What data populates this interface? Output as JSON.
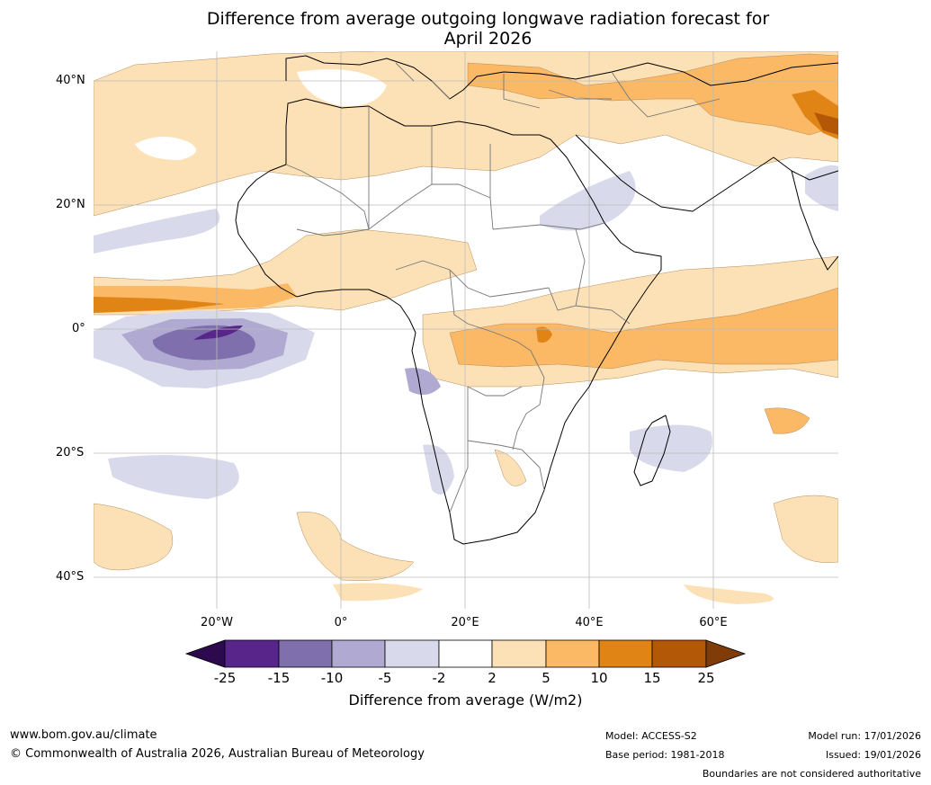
{
  "title": {
    "line1": "Difference from average outgoing longwave radiation forecast for",
    "line2": "April 2026"
  },
  "lat_labels": [
    "40°N",
    "20°N",
    "0°",
    "20°S",
    "40°S"
  ],
  "lon_labels": [
    "20°W",
    "0°",
    "20°E",
    "40°E",
    "60°E"
  ],
  "colorbar": {
    "ticks": [
      "-25",
      "-15",
      "-10",
      "-5",
      "-2",
      "2",
      "5",
      "10",
      "15",
      "25"
    ],
    "label": "Difference from average (W/m2)",
    "colors": [
      "#2d0a4e",
      "#58258a",
      "#7f6fad",
      "#b0a9d1",
      "#d9d9ec",
      "#ffffff",
      "#fde1b6",
      "#fbb865",
      "#e08416",
      "#b35806",
      "#7f3b08"
    ]
  },
  "footer": {
    "website": "www.bom.gov.au/climate",
    "copyright": "© Commonwealth of Australia 2026, Australian Bureau of Meteorology",
    "model": "Model: ACCESS-S2",
    "base_period": "Base period: 1981-2018",
    "model_run": "Model run: 17/01/2026",
    "issued": "Issued: 19/01/2026",
    "disclaimer": "Boundaries are not considered authoritative"
  }
}
